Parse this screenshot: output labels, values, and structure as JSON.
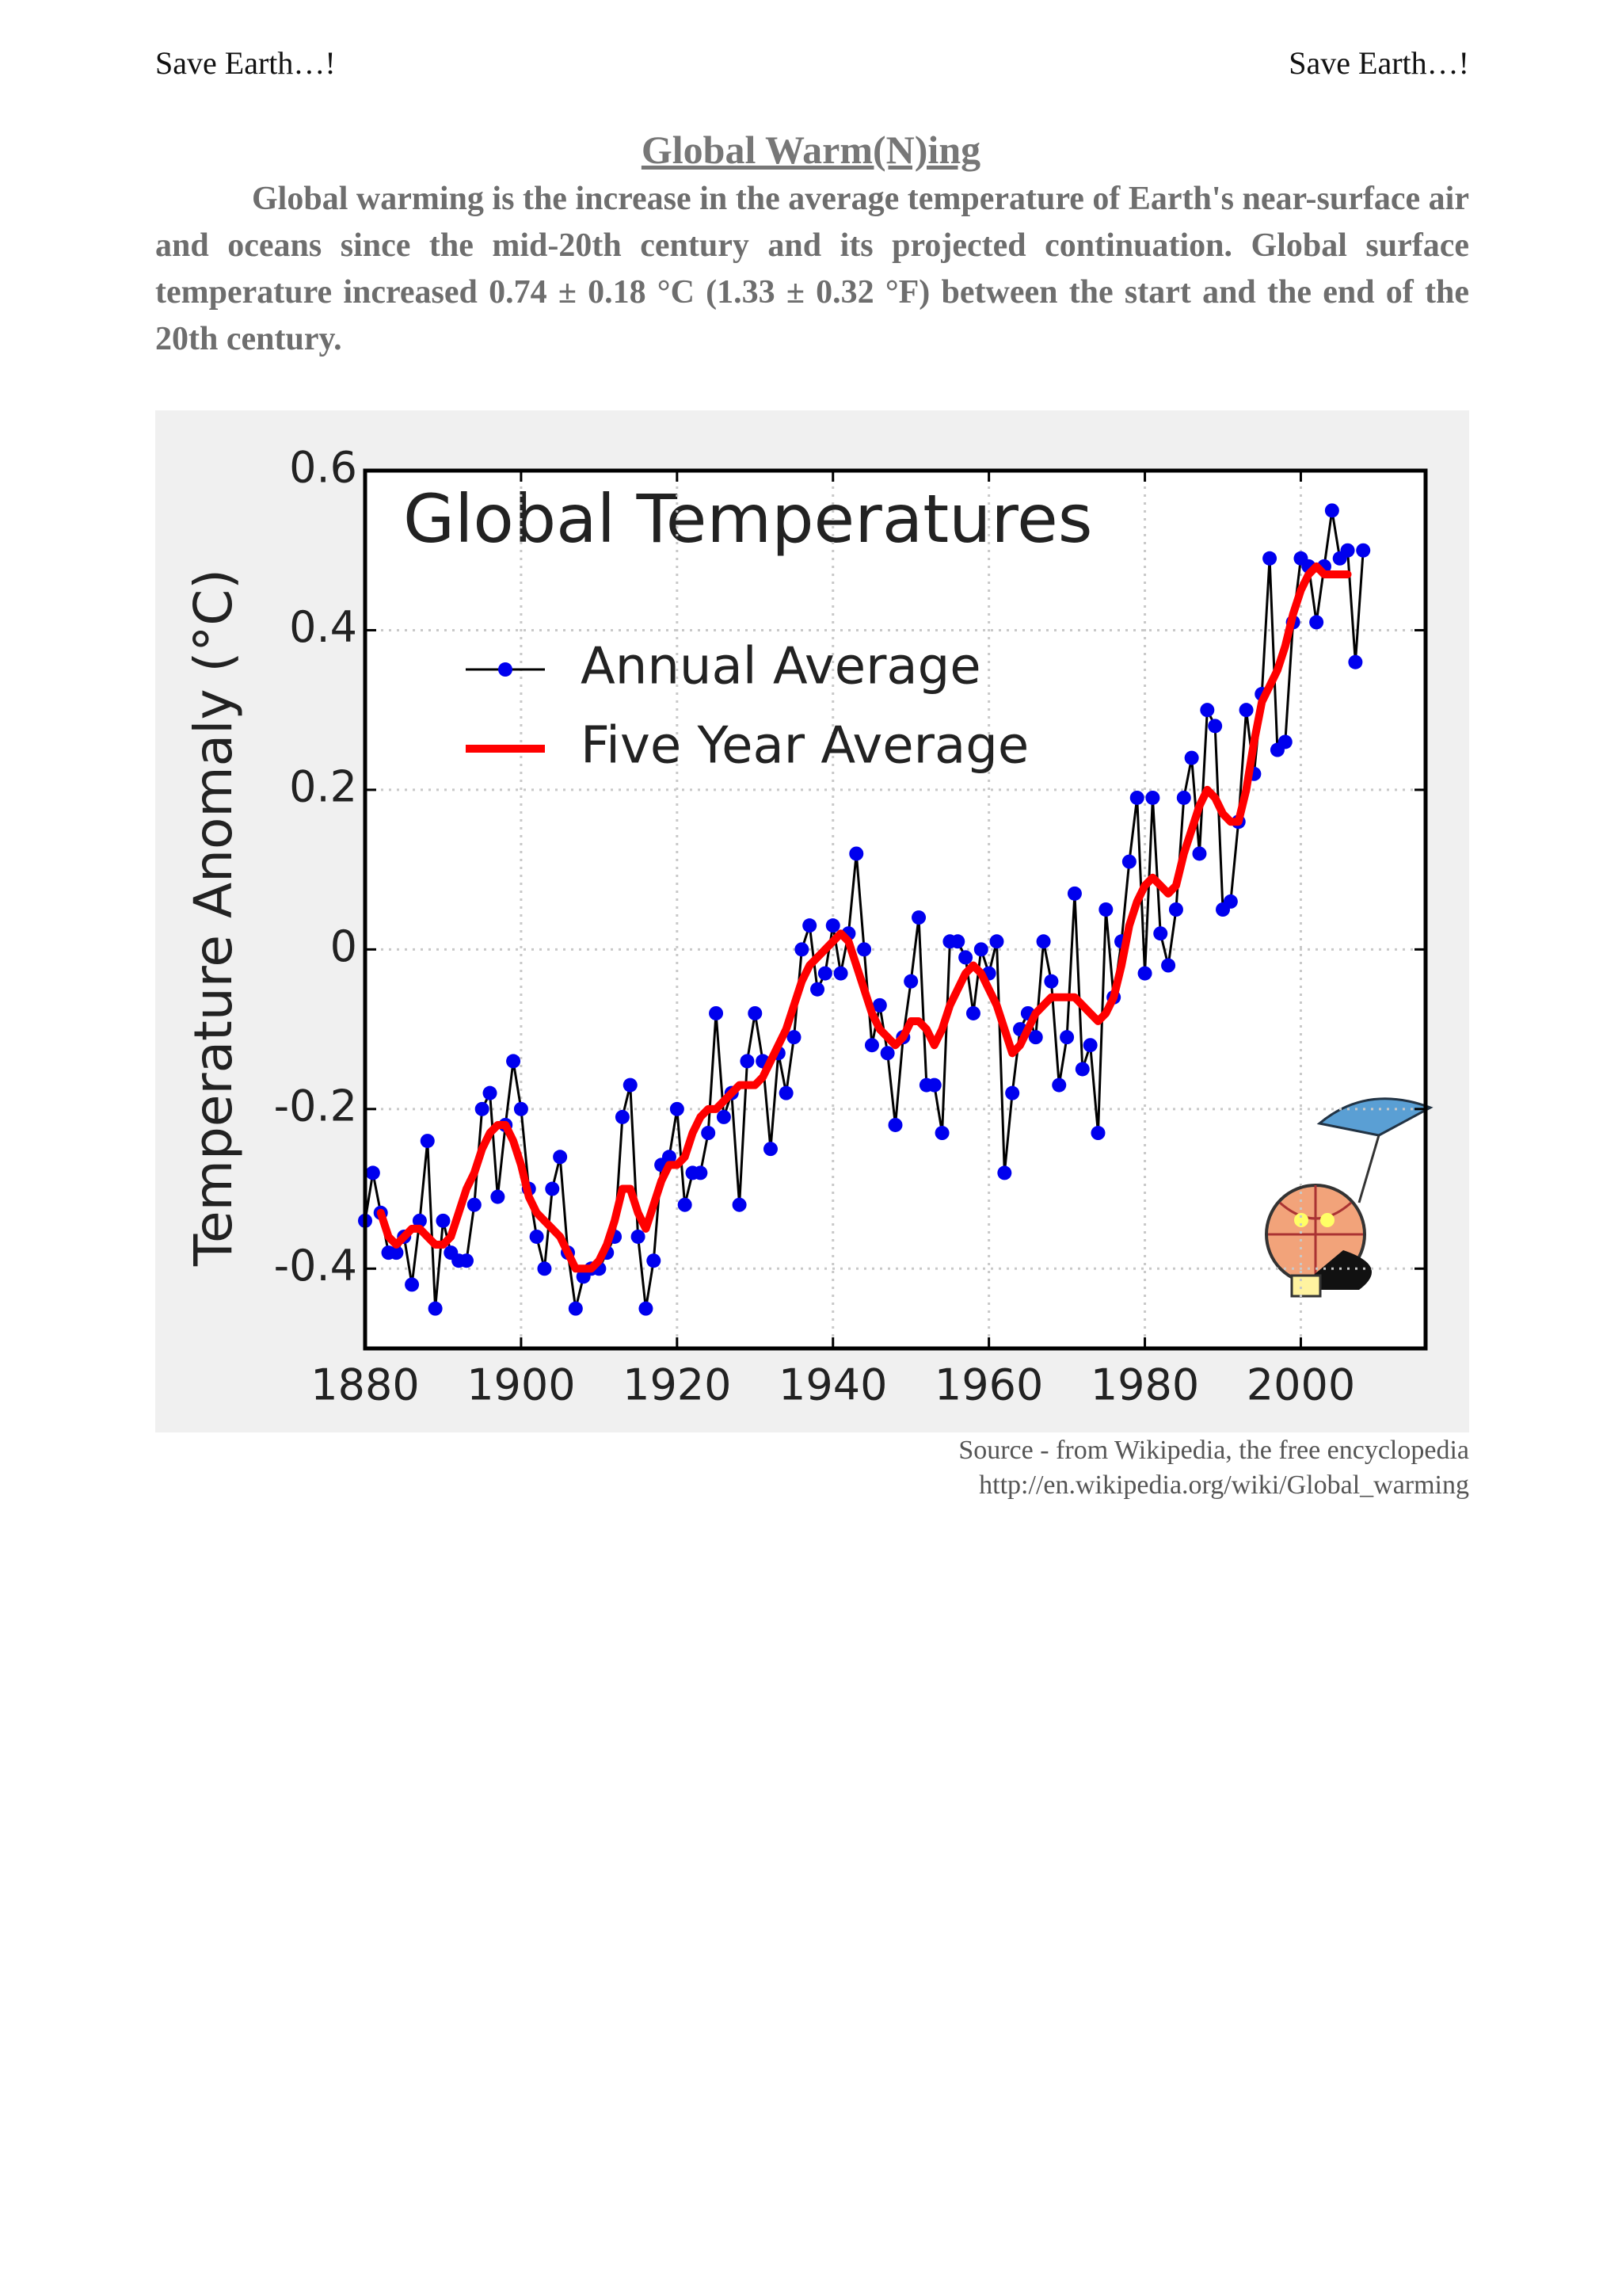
{
  "header": {
    "left": "Save Earth…!",
    "right": "Save Earth…!"
  },
  "title": "Global Warm(N)ing",
  "paragraph": "Global warming is the increase in the average temperature of Earth's near-surface air and oceans since the mid-20th century and its projected continuation. Global surface temperature increased 0.74 ± 0.18 °C (1.33 ± 0.32 °F) between the start and the end of the 20th century.",
  "chart_data": {
    "type": "line",
    "title": "Global Temperatures",
    "ylabel": "Temperature Anomaly (°C)",
    "x": [
      1880,
      1881,
      1882,
      1883,
      1884,
      1885,
      1886,
      1887,
      1888,
      1889,
      1890,
      1891,
      1892,
      1893,
      1894,
      1895,
      1896,
      1897,
      1898,
      1899,
      1900,
      1901,
      1902,
      1903,
      1904,
      1905,
      1906,
      1907,
      1908,
      1909,
      1910,
      1911,
      1912,
      1913,
      1914,
      1915,
      1916,
      1917,
      1918,
      1919,
      1920,
      1921,
      1922,
      1923,
      1924,
      1925,
      1926,
      1927,
      1928,
      1929,
      1930,
      1931,
      1932,
      1933,
      1934,
      1935,
      1936,
      1937,
      1938,
      1939,
      1940,
      1941,
      1942,
      1943,
      1944,
      1945,
      1946,
      1947,
      1948,
      1949,
      1950,
      1951,
      1952,
      1953,
      1954,
      1955,
      1956,
      1957,
      1958,
      1959,
      1960,
      1961,
      1962,
      1963,
      1964,
      1965,
      1966,
      1967,
      1968,
      1969,
      1970,
      1971,
      1972,
      1973,
      1974,
      1975,
      1976,
      1977,
      1978,
      1979,
      1980,
      1981,
      1982,
      1983,
      1984,
      1985,
      1986,
      1987,
      1988,
      1989,
      1990,
      1991,
      1992,
      1993,
      1994,
      1995,
      1996,
      1997,
      1998,
      1999,
      2000,
      2001,
      2002,
      2003,
      2004,
      2005,
      2006,
      2007,
      2008
    ],
    "series": [
      {
        "name": "Annual Average",
        "color": "#0000ee",
        "line_color": "#000000",
        "marker": true,
        "values": [
          -0.34,
          -0.28,
          -0.33,
          -0.38,
          -0.38,
          -0.36,
          -0.42,
          -0.34,
          -0.24,
          -0.45,
          -0.34,
          -0.38,
          -0.39,
          -0.39,
          -0.32,
          -0.2,
          -0.18,
          -0.31,
          -0.22,
          -0.14,
          -0.2,
          -0.3,
          -0.36,
          -0.4,
          -0.3,
          -0.26,
          -0.38,
          -0.45,
          -0.41,
          -0.4,
          -0.4,
          -0.38,
          -0.36,
          -0.21,
          -0.17,
          -0.36,
          -0.45,
          -0.39,
          -0.27,
          -0.26,
          -0.2,
          -0.32,
          -0.28,
          -0.28,
          -0.23,
          -0.08,
          -0.21,
          -0.18,
          -0.32,
          -0.14,
          -0.08,
          -0.14,
          -0.25,
          -0.13,
          -0.18,
          -0.11,
          0.0,
          0.03,
          -0.05,
          -0.03,
          0.03,
          -0.03,
          0.02,
          0.12,
          0.0,
          -0.12,
          -0.07,
          -0.13,
          -0.22,
          -0.11,
          -0.04,
          0.04,
          -0.17,
          -0.17,
          -0.23,
          0.01,
          0.01,
          -0.01,
          -0.08,
          0.0,
          -0.03,
          0.01,
          -0.28,
          -0.18,
          -0.1,
          -0.08,
          -0.11,
          0.01,
          -0.04,
          -0.17,
          -0.11,
          0.07,
          -0.15,
          -0.12,
          -0.23,
          0.05,
          -0.06,
          0.01,
          0.11,
          0.19,
          -0.03,
          0.19,
          0.02,
          -0.02,
          0.05,
          0.19,
          0.24,
          0.12,
          0.3,
          0.28,
          0.05,
          0.06,
          0.16,
          0.3,
          0.22,
          0.32,
          0.49,
          0.25,
          0.26,
          0.41,
          0.49,
          0.48,
          0.41,
          0.48,
          0.55,
          0.49,
          0.5,
          0.36,
          0.5
        ]
      },
      {
        "name": "Five Year Average",
        "color": "#ff0000",
        "marker": false,
        "values": [
          null,
          null,
          -0.33,
          -0.36,
          -0.37,
          -0.36,
          -0.35,
          -0.35,
          -0.36,
          -0.37,
          -0.37,
          -0.36,
          -0.33,
          -0.3,
          -0.28,
          -0.25,
          -0.23,
          -0.22,
          -0.22,
          -0.24,
          -0.27,
          -0.31,
          -0.33,
          -0.34,
          -0.35,
          -0.36,
          -0.38,
          -0.4,
          -0.4,
          -0.4,
          -0.39,
          -0.37,
          -0.34,
          -0.3,
          -0.3,
          -0.33,
          -0.35,
          -0.32,
          -0.29,
          -0.27,
          -0.27,
          -0.26,
          -0.23,
          -0.21,
          -0.2,
          -0.2,
          -0.19,
          -0.18,
          -0.17,
          -0.17,
          -0.17,
          -0.16,
          -0.14,
          -0.12,
          -0.1,
          -0.07,
          -0.04,
          -0.02,
          -0.01,
          0.0,
          0.01,
          0.02,
          0.01,
          -0.02,
          -0.05,
          -0.08,
          -0.1,
          -0.11,
          -0.12,
          -0.11,
          -0.09,
          -0.09,
          -0.1,
          -0.12,
          -0.1,
          -0.07,
          -0.05,
          -0.03,
          -0.02,
          -0.03,
          -0.05,
          -0.07,
          -0.1,
          -0.13,
          -0.12,
          -0.1,
          -0.08,
          -0.07,
          -0.06,
          -0.06,
          -0.06,
          -0.06,
          -0.07,
          -0.08,
          -0.09,
          -0.08,
          -0.06,
          -0.02,
          0.03,
          0.06,
          0.08,
          0.09,
          0.08,
          0.07,
          0.08,
          0.12,
          0.15,
          0.18,
          0.2,
          0.19,
          0.17,
          0.16,
          0.16,
          0.2,
          0.26,
          0.31,
          0.33,
          0.35,
          0.38,
          0.42,
          0.45,
          0.47,
          0.48,
          0.47,
          0.47,
          0.47,
          0.47,
          null,
          null
        ]
      }
    ],
    "xlim": [
      1880,
      2016
    ],
    "xticks": [
      1880,
      1900,
      1920,
      1940,
      1960,
      1980,
      2000
    ],
    "ylim": [
      -0.5,
      0.6
    ],
    "yticks": [
      -0.4,
      -0.2,
      0,
      0.2,
      0.4,
      0.6
    ],
    "grid": true,
    "legend": "upper left"
  },
  "source": [
    "Source - from Wikipedia, the free encyclopedia",
    "http://en.wikipedia.org/wiki/Global_warming"
  ]
}
